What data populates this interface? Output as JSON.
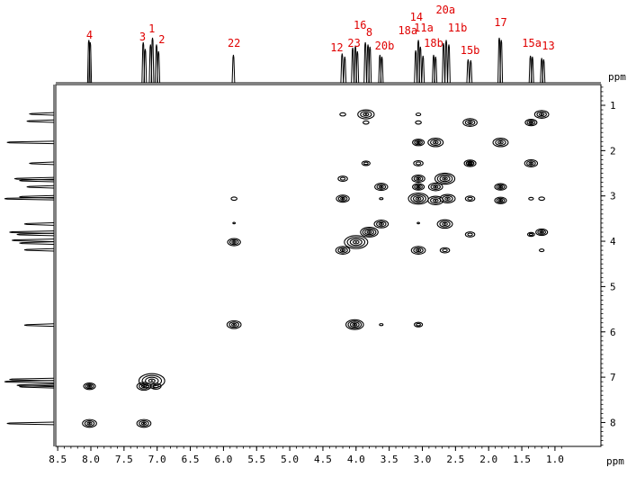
{
  "chart_data": {
    "type": "2d-nmr-cosy",
    "x_axis": {
      "unit": "ppm",
      "range": [
        8.6,
        0.9
      ],
      "reversed": true,
      "ticks": [
        "8.5",
        "8.0",
        "7.5",
        "7.0",
        "6.5",
        "6.0",
        "5.5",
        "5.0",
        "4.5",
        "4.0",
        "3.5",
        "3.0",
        "2.5",
        "2.0",
        "1.5",
        "1.0"
      ]
    },
    "y_axis": {
      "unit": "ppm",
      "range": [
        0.8,
        8.5
      ],
      "reversed": true,
      "ticks": [
        "1",
        "2",
        "3",
        "4",
        "5",
        "6",
        "7",
        "8"
      ]
    },
    "peak_labels": [
      {
        "text": "4",
        "ppm": 8.02
      },
      {
        "text": "3",
        "ppm": 7.22
      },
      {
        "text": "1",
        "ppm": 7.08
      },
      {
        "text": "2",
        "ppm": 6.93
      },
      {
        "text": "22",
        "ppm": 5.84
      },
      {
        "text": "12",
        "ppm": 4.29
      },
      {
        "text": "23",
        "ppm": 4.03
      },
      {
        "text": "16",
        "ppm": 3.94
      },
      {
        "text": "8",
        "ppm": 3.8
      },
      {
        "text": "20b",
        "ppm": 3.57
      },
      {
        "text": "18a",
        "ppm": 3.22
      },
      {
        "text": "14",
        "ppm": 3.09
      },
      {
        "text": "11a",
        "ppm": 2.98
      },
      {
        "text": "18b",
        "ppm": 2.83
      },
      {
        "text": "20a",
        "ppm": 2.65
      },
      {
        "text": "11b",
        "ppm": 2.47
      },
      {
        "text": "15b",
        "ppm": 2.28
      },
      {
        "text": "17",
        "ppm": 1.82
      },
      {
        "text": "15a",
        "ppm": 1.35
      },
      {
        "text": "13",
        "ppm": 1.1
      }
    ],
    "projection_peaks": [
      {
        "ppm": 8.03,
        "h": 0.95
      },
      {
        "ppm": 8.01,
        "h": 0.9
      },
      {
        "ppm": 7.21,
        "h": 0.9
      },
      {
        "ppm": 7.18,
        "h": 0.75
      },
      {
        "ppm": 7.1,
        "h": 0.85
      },
      {
        "ppm": 7.07,
        "h": 1.0
      },
      {
        "ppm": 7.01,
        "h": 0.85
      },
      {
        "ppm": 6.98,
        "h": 0.7
      },
      {
        "ppm": 5.85,
        "h": 0.62
      },
      {
        "ppm": 4.21,
        "h": 0.65
      },
      {
        "ppm": 4.17,
        "h": 0.58
      },
      {
        "ppm": 4.05,
        "h": 0.78
      },
      {
        "ppm": 4.01,
        "h": 0.82
      },
      {
        "ppm": 3.98,
        "h": 0.7
      },
      {
        "ppm": 3.86,
        "h": 0.9
      },
      {
        "ppm": 3.82,
        "h": 0.85
      },
      {
        "ppm": 3.79,
        "h": 0.8
      },
      {
        "ppm": 3.64,
        "h": 0.62
      },
      {
        "ppm": 3.61,
        "h": 0.58
      },
      {
        "ppm": 3.1,
        "h": 0.72
      },
      {
        "ppm": 3.06,
        "h": 0.95
      },
      {
        "ppm": 3.03,
        "h": 0.8
      },
      {
        "ppm": 2.99,
        "h": 0.6
      },
      {
        "ppm": 2.83,
        "h": 0.62
      },
      {
        "ppm": 2.8,
        "h": 0.58
      },
      {
        "ppm": 2.68,
        "h": 0.88
      },
      {
        "ppm": 2.64,
        "h": 0.95
      },
      {
        "ppm": 2.6,
        "h": 0.85
      },
      {
        "ppm": 2.31,
        "h": 0.52
      },
      {
        "ppm": 2.27,
        "h": 0.5
      },
      {
        "ppm": 1.84,
        "h": 1.0
      },
      {
        "ppm": 1.81,
        "h": 0.95
      },
      {
        "ppm": 1.37,
        "h": 0.6
      },
      {
        "ppm": 1.34,
        "h": 0.58
      },
      {
        "ppm": 1.2,
        "h": 0.55
      },
      {
        "ppm": 1.17,
        "h": 0.52
      }
    ],
    "left_projection_peaks": [
      {
        "ppm": 1.19,
        "h": 0.5
      },
      {
        "ppm": 1.35,
        "h": 0.55
      },
      {
        "ppm": 1.82,
        "h": 0.95
      },
      {
        "ppm": 2.28,
        "h": 0.5
      },
      {
        "ppm": 2.62,
        "h": 0.8
      },
      {
        "ppm": 2.66,
        "h": 0.7
      },
      {
        "ppm": 2.8,
        "h": 0.55
      },
      {
        "ppm": 3.06,
        "h": 1.0
      },
      {
        "ppm": 3.02,
        "h": 0.7
      },
      {
        "ppm": 3.62,
        "h": 0.6
      },
      {
        "ppm": 3.8,
        "h": 0.9
      },
      {
        "ppm": 3.85,
        "h": 0.75
      },
      {
        "ppm": 3.98,
        "h": 0.85
      },
      {
        "ppm": 4.04,
        "h": 0.7
      },
      {
        "ppm": 4.19,
        "h": 0.6
      },
      {
        "ppm": 5.85,
        "h": 0.6
      },
      {
        "ppm": 7.05,
        "h": 0.9
      },
      {
        "ppm": 7.1,
        "h": 1.0
      },
      {
        "ppm": 7.18,
        "h": 0.75
      },
      {
        "ppm": 7.21,
        "h": 0.7
      },
      {
        "ppm": 8.02,
        "h": 0.95
      }
    ],
    "cross_peaks": [
      {
        "x": 4.2,
        "y": 1.2,
        "s": 0.5
      },
      {
        "x": 3.85,
        "y": 1.2,
        "s": 1.4
      },
      {
        "x": 3.06,
        "y": 1.2,
        "s": 0.4
      },
      {
        "x": 1.2,
        "y": 1.2,
        "s": 1.2
      },
      {
        "x": 3.85,
        "y": 1.38,
        "s": 0.5
      },
      {
        "x": 3.06,
        "y": 1.38,
        "s": 0.5
      },
      {
        "x": 2.28,
        "y": 1.38,
        "s": 1.2
      },
      {
        "x": 1.36,
        "y": 1.38,
        "s": 1.0
      },
      {
        "x": 3.06,
        "y": 1.82,
        "s": 1.0
      },
      {
        "x": 2.8,
        "y": 1.82,
        "s": 1.3
      },
      {
        "x": 1.82,
        "y": 1.82,
        "s": 1.3
      },
      {
        "x": 3.85,
        "y": 2.28,
        "s": 0.7
      },
      {
        "x": 3.06,
        "y": 2.28,
        "s": 0.8
      },
      {
        "x": 2.28,
        "y": 2.28,
        "s": 1.0
      },
      {
        "x": 1.36,
        "y": 2.28,
        "s": 1.1
      },
      {
        "x": 4.2,
        "y": 2.62,
        "s": 0.8
      },
      {
        "x": 3.06,
        "y": 2.62,
        "s": 1.1
      },
      {
        "x": 2.66,
        "y": 2.62,
        "s": 1.7
      },
      {
        "x": 2.28,
        "y": 2.28,
        "s": 0.6
      },
      {
        "x": 3.62,
        "y": 2.8,
        "s": 1.1
      },
      {
        "x": 3.06,
        "y": 2.8,
        "s": 1.0
      },
      {
        "x": 2.8,
        "y": 2.8,
        "s": 1.2
      },
      {
        "x": 1.82,
        "y": 2.8,
        "s": 1.0
      },
      {
        "x": 5.84,
        "y": 3.06,
        "s": 0.5
      },
      {
        "x": 4.2,
        "y": 3.06,
        "s": 1.1
      },
      {
        "x": 3.62,
        "y": 3.06,
        "s": 0.3
      },
      {
        "x": 3.06,
        "y": 3.06,
        "s": 1.7
      },
      {
        "x": 2.8,
        "y": 3.1,
        "s": 1.3
      },
      {
        "x": 2.62,
        "y": 3.06,
        "s": 1.3
      },
      {
        "x": 2.28,
        "y": 3.06,
        "s": 0.8
      },
      {
        "x": 1.82,
        "y": 3.1,
        "s": 1.0
      },
      {
        "x": 1.36,
        "y": 3.06,
        "s": 0.4
      },
      {
        "x": 1.2,
        "y": 3.06,
        "s": 0.5
      },
      {
        "x": 5.84,
        "y": 3.6,
        "s": 0.2
      },
      {
        "x": 3.62,
        "y": 3.62,
        "s": 1.2
      },
      {
        "x": 3.06,
        "y": 3.6,
        "s": 0.2
      },
      {
        "x": 2.66,
        "y": 3.62,
        "s": 1.3
      },
      {
        "x": 3.8,
        "y": 3.8,
        "s": 1.5
      },
      {
        "x": 2.28,
        "y": 3.85,
        "s": 0.8
      },
      {
        "x": 1.36,
        "y": 3.85,
        "s": 0.6
      },
      {
        "x": 1.2,
        "y": 3.8,
        "s": 1.0
      },
      {
        "x": 5.84,
        "y": 4.02,
        "s": 1.1
      },
      {
        "x": 4.0,
        "y": 4.02,
        "s": 2.0
      },
      {
        "x": 4.2,
        "y": 4.2,
        "s": 1.2
      },
      {
        "x": 3.06,
        "y": 4.2,
        "s": 1.2
      },
      {
        "x": 2.66,
        "y": 4.2,
        "s": 0.8
      },
      {
        "x": 1.2,
        "y": 4.2,
        "s": 0.4
      },
      {
        "x": 5.84,
        "y": 5.84,
        "s": 1.2
      },
      {
        "x": 4.02,
        "y": 5.84,
        "s": 1.5
      },
      {
        "x": 3.62,
        "y": 5.84,
        "s": 0.3
      },
      {
        "x": 3.06,
        "y": 5.84,
        "s": 0.7
      },
      {
        "x": 8.02,
        "y": 7.2,
        "s": 1.0
      },
      {
        "x": 7.2,
        "y": 7.2,
        "s": 1.2
      },
      {
        "x": 7.08,
        "y": 7.08,
        "s": 2.2
      },
      {
        "x": 7.02,
        "y": 7.2,
        "s": 0.9
      },
      {
        "x": 8.02,
        "y": 8.02,
        "s": 1.2
      },
      {
        "x": 7.2,
        "y": 8.02,
        "s": 1.2
      }
    ],
    "colors": {
      "label": "#e00000",
      "trace": "#000000"
    }
  }
}
